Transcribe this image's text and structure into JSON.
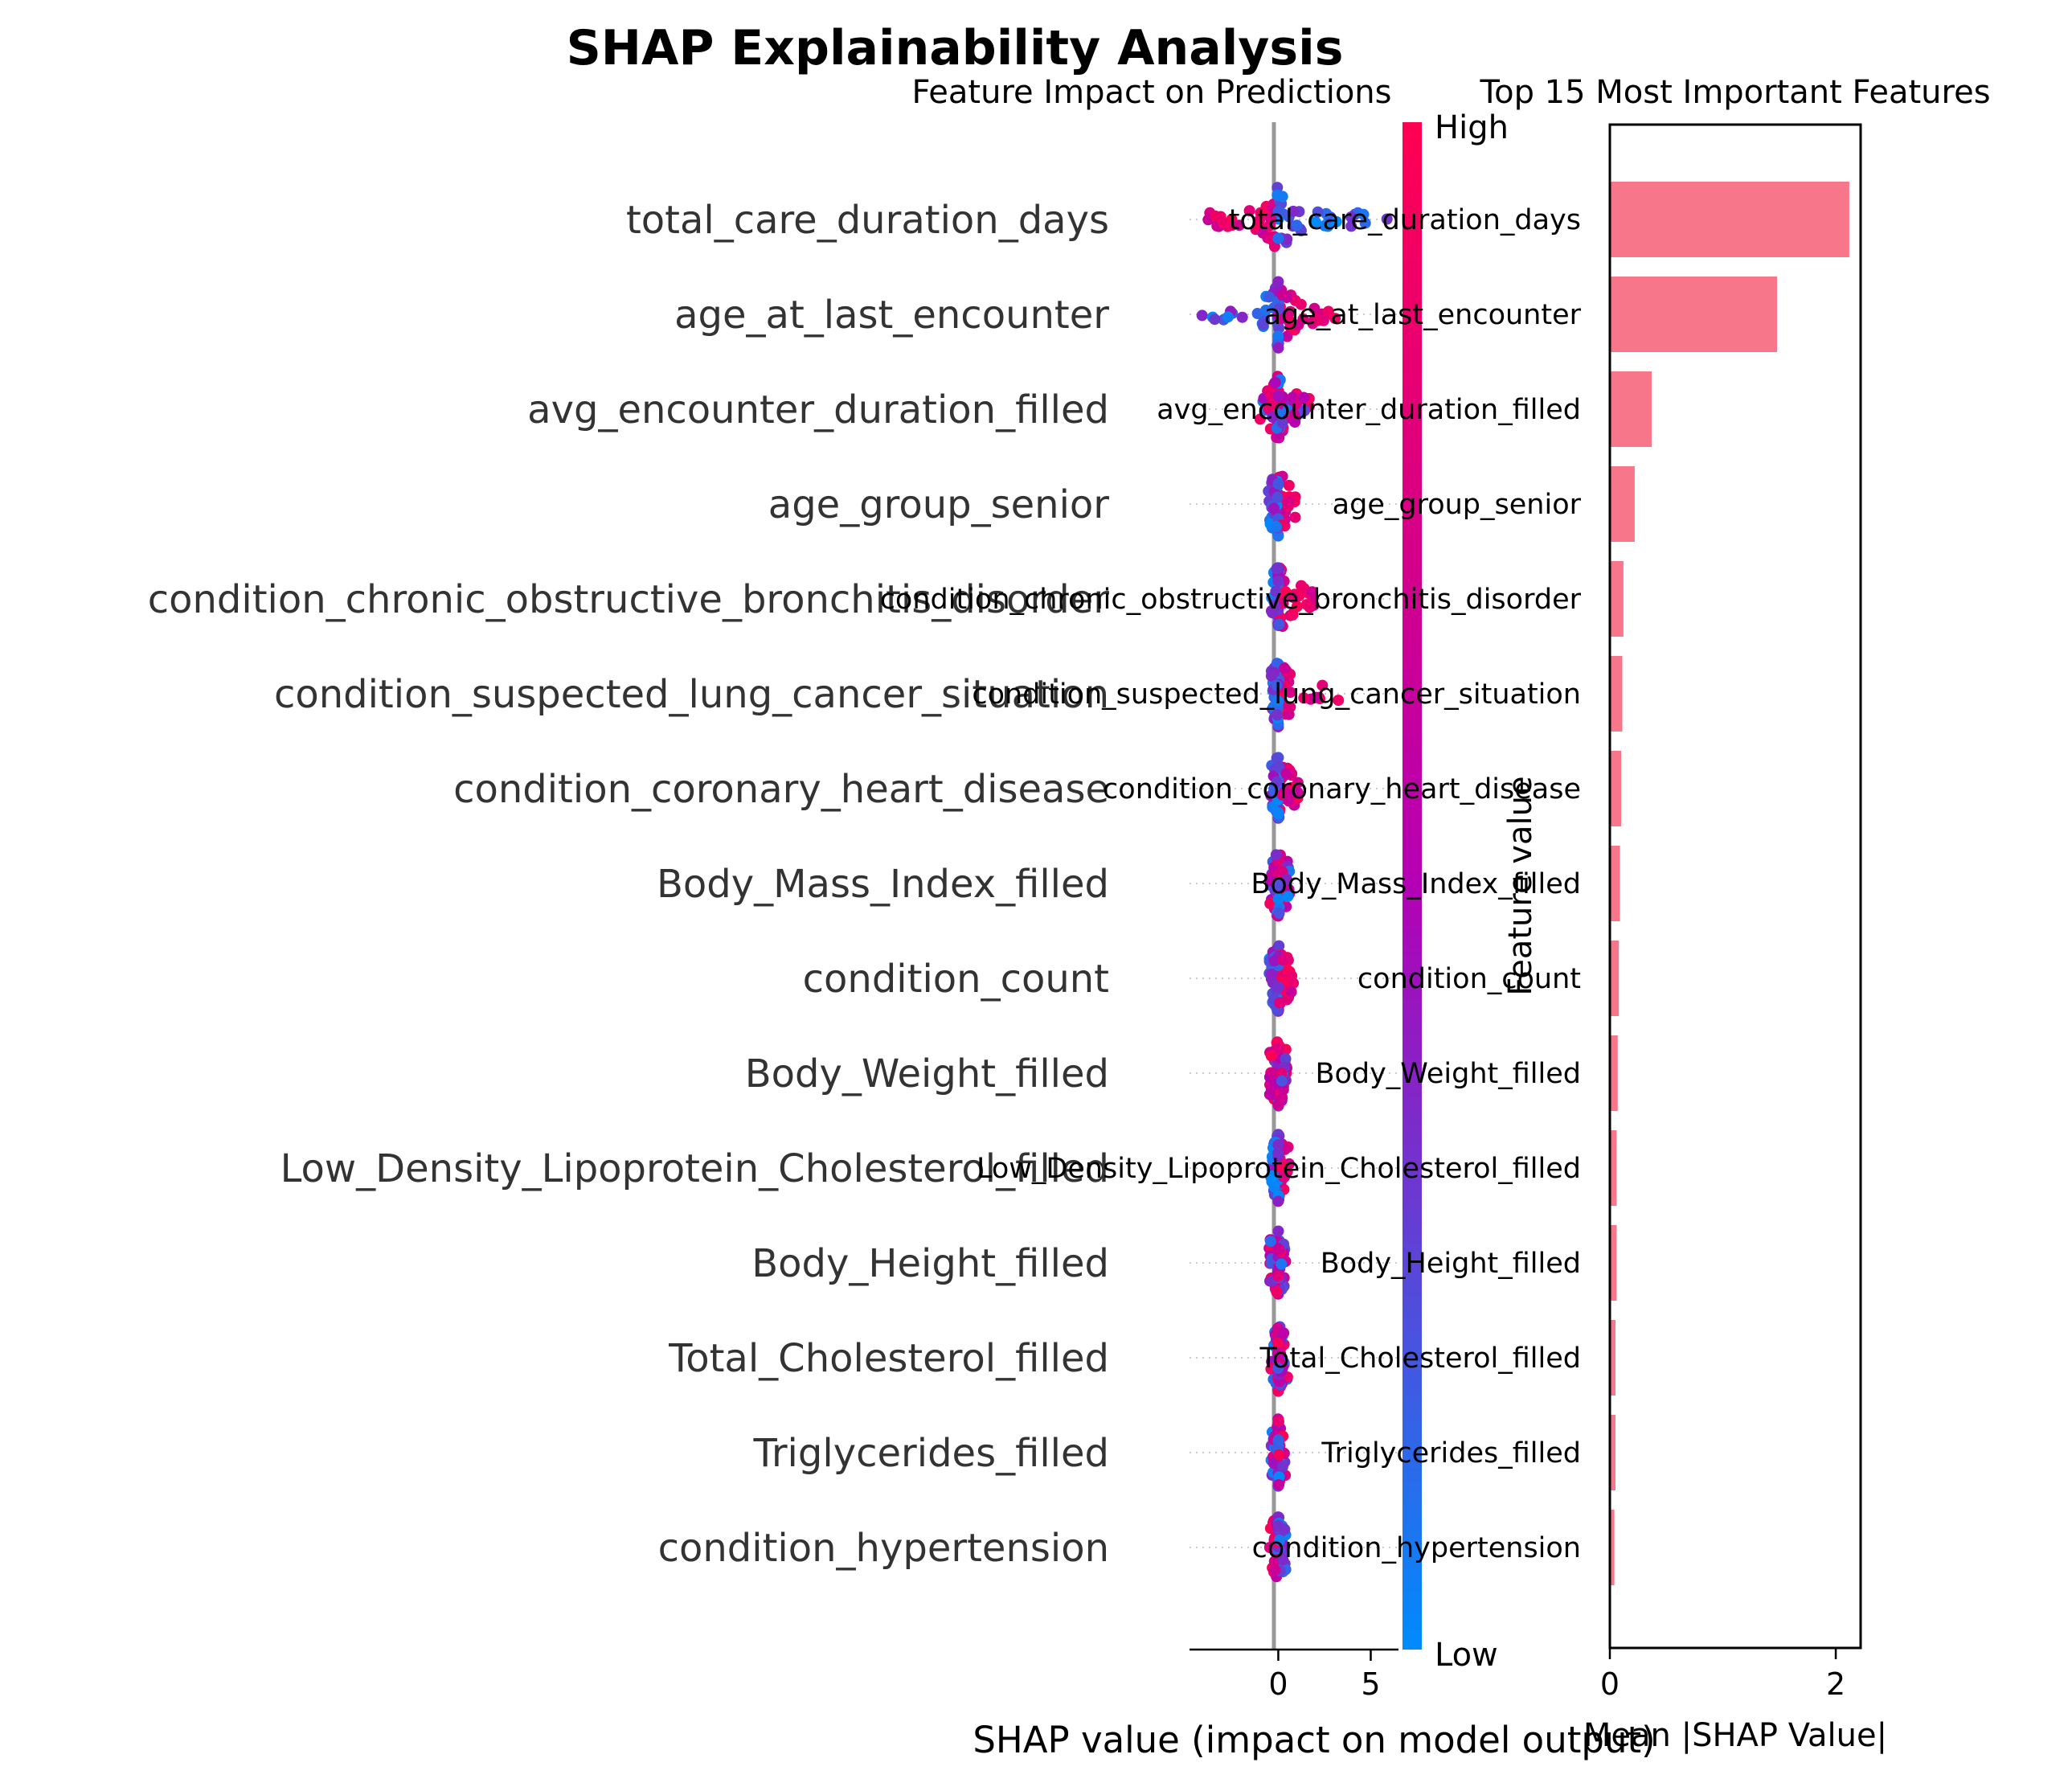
{
  "figure": {
    "title": "SHAP Explainability Analysis"
  },
  "chart_data": [
    {
      "type": "scatter",
      "subtype": "shap-beeswarm",
      "title": "Feature Impact on Predictions",
      "xlabel": "SHAP value (impact on model output)",
      "xlim": [
        -4.8,
        6.5
      ],
      "xticks": [
        0,
        5
      ],
      "features": [
        {
          "name": "total_care_duration_days",
          "spread_neg": 4.2,
          "spread_pos": 6.0,
          "high_side": "negative"
        },
        {
          "name": "age_at_last_encounter",
          "spread_neg": 4.3,
          "spread_pos": 3.2,
          "high_side": "positive"
        },
        {
          "name": "avg_encounter_duration_filled",
          "spread_neg": 1.0,
          "spread_pos": 1.8,
          "high_side": "mixed"
        },
        {
          "name": "age_group_senior",
          "spread_neg": 0.6,
          "spread_pos": 1.0,
          "high_side": "positive"
        },
        {
          "name": "condition_chronic_obstructive_bronchitis_disorder",
          "spread_neg": 0.4,
          "spread_pos": 2.0,
          "high_side": "positive"
        },
        {
          "name": "condition_suspected_lung_cancer_situation",
          "spread_neg": 0.4,
          "spread_pos": 3.5,
          "high_side": "positive"
        },
        {
          "name": "condition_coronary_heart_disease",
          "spread_neg": 0.4,
          "spread_pos": 1.2,
          "high_side": "positive"
        },
        {
          "name": "Body_Mass_Index_filled",
          "spread_neg": 0.5,
          "spread_pos": 0.6,
          "high_side": "mixed"
        },
        {
          "name": "condition_count",
          "spread_neg": 0.5,
          "spread_pos": 0.9,
          "high_side": "positive"
        },
        {
          "name": "Body_Weight_filled",
          "spread_neg": 0.5,
          "spread_pos": 0.5,
          "high_side": "mixed"
        },
        {
          "name": "Low_Density_Lipoprotein_Cholesterol_filled",
          "spread_neg": 0.4,
          "spread_pos": 0.6,
          "high_side": "positive"
        },
        {
          "name": "Body_Height_filled",
          "spread_neg": 0.5,
          "spread_pos": 0.4,
          "high_side": "mixed"
        },
        {
          "name": "Total_Cholesterol_filled",
          "spread_neg": 0.4,
          "spread_pos": 0.5,
          "high_side": "mixed"
        },
        {
          "name": "Triglycerides_filled",
          "spread_neg": 0.4,
          "spread_pos": 0.4,
          "high_side": "mixed"
        },
        {
          "name": "condition_hypertension",
          "spread_neg": 0.5,
          "spread_pos": 0.4,
          "high_side": "negative"
        }
      ],
      "colorbar": {
        "label": "Feature value",
        "high_label": "High",
        "low_label": "Low",
        "high_color": "#ff0052",
        "low_color": "#008bfb"
      },
      "zero_line_color": "#999999"
    },
    {
      "type": "bar",
      "orientation": "horizontal",
      "title": "Top 15 Most Important Features",
      "xlabel": "Mean |SHAP Value|",
      "xlim": [
        0,
        2.22
      ],
      "xticks": [
        0,
        2
      ],
      "bar_color": "#f7768a",
      "categories": [
        "total_care_duration_days",
        "age_at_last_encounter",
        "avg_encounter_duration_filled",
        "age_group_senior",
        "condition_chronic_obstructive_bronchitis_disorder",
        "condition_suspected_lung_cancer_situation",
        "condition_coronary_heart_disease",
        "Body_Mass_Index_filled",
        "condition_count",
        "Body_Weight_filled",
        "Low_Density_Lipoprotein_Cholesterol_filled",
        "Body_Height_filled",
        "Total_Cholesterol_filled",
        "Triglycerides_filled",
        "condition_hypertension"
      ],
      "values": [
        2.12,
        1.48,
        0.37,
        0.22,
        0.12,
        0.11,
        0.1,
        0.09,
        0.08,
        0.07,
        0.06,
        0.06,
        0.05,
        0.05,
        0.04
      ]
    }
  ]
}
